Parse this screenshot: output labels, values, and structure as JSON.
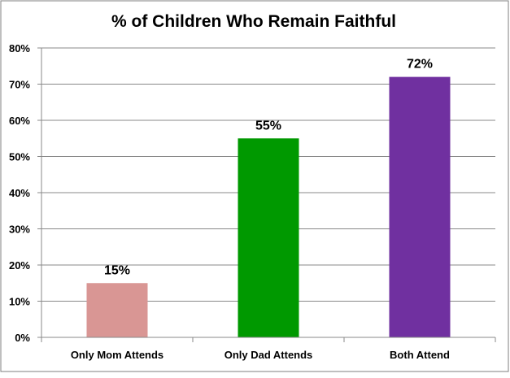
{
  "chart_data": {
    "type": "bar",
    "title": "% of Children Who Remain Faithful",
    "categories": [
      "Only Mom Attends",
      "Only Dad Attends",
      "Both Attend"
    ],
    "values": [
      15,
      55,
      72
    ],
    "data_labels": [
      "15%",
      "55%",
      "72%"
    ],
    "colors": [
      "#D99694",
      "#009900",
      "#7030A0"
    ],
    "ylim": [
      0,
      80
    ],
    "yticks": [
      "0%",
      "10%",
      "20%",
      "30%",
      "40%",
      "50%",
      "60%",
      "70%",
      "80%"
    ],
    "grid": true,
    "legend": false
  }
}
